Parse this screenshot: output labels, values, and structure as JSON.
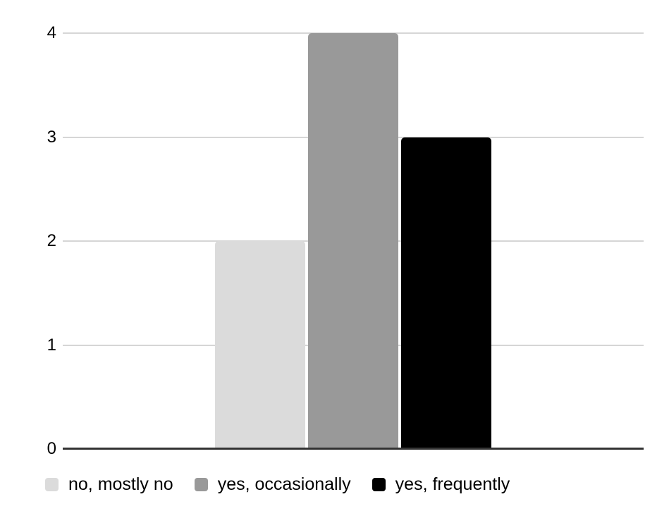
{
  "chart_data": {
    "type": "bar",
    "title": "",
    "xlabel": "",
    "ylabel": "",
    "ylim": [
      0,
      4
    ],
    "yticks": [
      0,
      1,
      2,
      3,
      4
    ],
    "grid": true,
    "legend_position": "bottom",
    "series": [
      {
        "name": "no, mostly no",
        "value": 2,
        "color": "#dbdbdb"
      },
      {
        "name": "yes, occasionally",
        "value": 4,
        "color": "#999999"
      },
      {
        "name": "yes, frequently",
        "value": 3,
        "color": "#000000"
      }
    ]
  },
  "colors": {
    "background": "#ffffff",
    "gridline": "#d6d6d6",
    "axis_line": "#333333",
    "tick_label": "#000000",
    "legend_text": "#000000"
  }
}
